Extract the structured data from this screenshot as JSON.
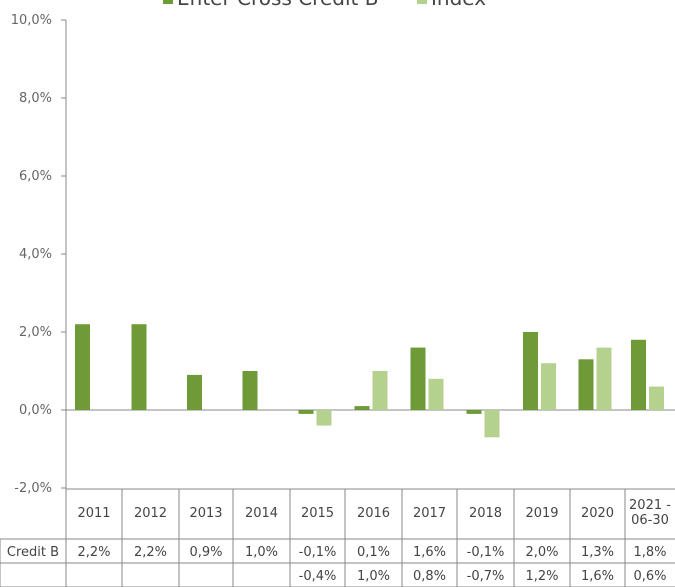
{
  "chart_data": {
    "type": "bar",
    "title": "",
    "xlabel": "",
    "ylabel": "",
    "ylim": [
      -2,
      10
    ],
    "y_ticks": [
      "-2,0%",
      "0,0%",
      "2,0%",
      "4,0%",
      "6,0%",
      "8,0%",
      "10,0%"
    ],
    "y_tick_values": [
      -2,
      0,
      2,
      4,
      6,
      8,
      10
    ],
    "categories": [
      "2011",
      "2012",
      "2013",
      "2014",
      "2015",
      "2016",
      "2017",
      "2018",
      "2019",
      "2020",
      "2021-06-30"
    ],
    "category_labels": [
      [
        "2011"
      ],
      [
        "2012"
      ],
      [
        "2013"
      ],
      [
        "2014"
      ],
      [
        "2015"
      ],
      [
        "2016"
      ],
      [
        "2017"
      ],
      [
        "2018"
      ],
      [
        "2019"
      ],
      [
        "2020"
      ],
      [
        "2021 -",
        "06-30"
      ]
    ],
    "legend_position": "top",
    "grid": false,
    "series": [
      {
        "name": "Enter Cross Credit B",
        "table_label": "Credit B",
        "color": "#6f9a38",
        "values": [
          2.2,
          2.2,
          0.9,
          1.0,
          -0.1,
          0.1,
          1.6,
          -0.1,
          2.0,
          1.3,
          1.8
        ],
        "table_values": [
          "2,2%",
          "2,2%",
          "0,9%",
          "1,0%",
          "-0,1%",
          "0,1%",
          "1,6%",
          "-0,1%",
          "2,0%",
          "1,3%",
          "1,8%"
        ]
      },
      {
        "name": "Index",
        "table_label": "",
        "color": "#b5d18e",
        "values": [
          null,
          null,
          null,
          null,
          -0.4,
          1.0,
          0.8,
          -0.7,
          1.2,
          1.6,
          0.6
        ],
        "table_values": [
          "",
          "",
          "",
          "",
          "-0,4%",
          "1,0%",
          "0,8%",
          "-0,7%",
          "1,2%",
          "1,6%",
          "0,6%"
        ]
      }
    ]
  }
}
